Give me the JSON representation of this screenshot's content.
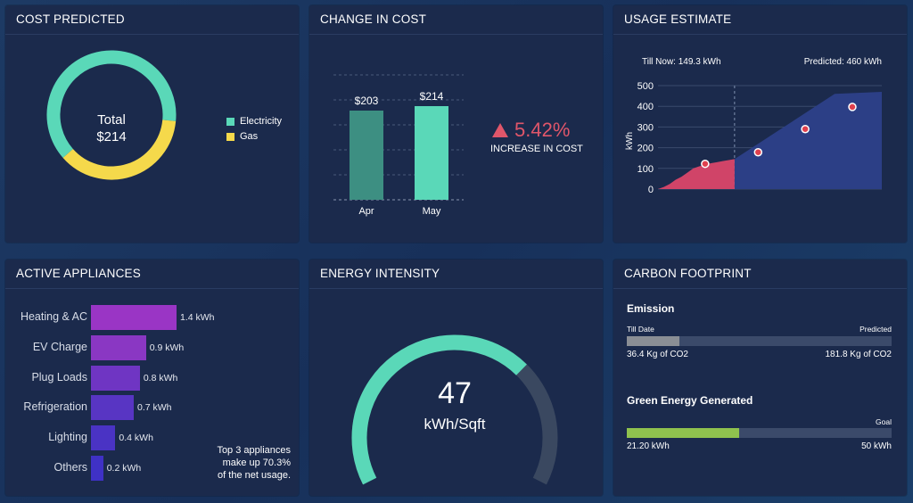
{
  "panels": {
    "cost_predicted": {
      "title": "COST PREDICTED",
      "center_line1": "Total",
      "center_line2": "$214",
      "legend": [
        {
          "label": "Electricity",
          "color": "#5ad8b8"
        },
        {
          "label": "Gas",
          "color": "#f5d94b"
        }
      ],
      "chart_data": {
        "type": "pie",
        "variant": "donut",
        "slices": [
          {
            "label": "Electricity",
            "fraction": 0.63,
            "color": "#5ad8b8"
          },
          {
            "label": "Gas",
            "fraction": 0.37,
            "color": "#f5d94b"
          }
        ]
      }
    },
    "change_in_cost": {
      "title": "CHANGE IN COST",
      "change_value": "5.42%",
      "change_caption": "INCREASE IN COST",
      "up_color": "#e0566a",
      "chart_data": {
        "type": "bar",
        "categories": [
          "Apr",
          "May"
        ],
        "values": [
          203,
          214
        ],
        "data_labels": [
          "$203",
          "$214"
        ],
        "colors": [
          "#3d8f82",
          "#5ad8b8"
        ],
        "ylim": [
          0,
          240
        ]
      }
    },
    "usage_estimate": {
      "title": "USAGE ESTIMATE",
      "till_now_label": "Till Now:",
      "till_now_value": "149.3 kWh",
      "predicted_label": "Predicted:",
      "predicted_value": "460 kWh",
      "chart_data": {
        "type": "area",
        "ylabel": "kWh",
        "ylim": [
          0,
          500
        ],
        "yticks": [
          "0",
          "100",
          "200",
          "300",
          "400",
          "500"
        ],
        "actual": {
          "x": [
            0,
            1,
            2,
            3,
            4,
            5,
            6,
            7,
            8,
            9,
            10,
            11,
            12,
            13
          ],
          "y": [
            0,
            10,
            25,
            45,
            60,
            80,
            100,
            110,
            118,
            125,
            130,
            135,
            140,
            145
          ],
          "color": "#d04468"
        },
        "predicted": {
          "x": [
            13,
            30
          ],
          "y": [
            145,
            460
          ],
          "color": "#2c3f86"
        },
        "markers": {
          "x": [
            8,
            17,
            25,
            33
          ],
          "y": [
            122,
            178,
            290,
            397
          ],
          "color": "#e0404e"
        },
        "xlim": [
          0,
          38
        ],
        "split_x": 13
      }
    },
    "active_appliances": {
      "title": "ACTIVE APPLIANCES",
      "note_line1": "Top 3 appliances",
      "note_line2": "make up 70.3%",
      "note_line3": "of the net usage.",
      "chart_data": {
        "type": "bar",
        "orientation": "horizontal",
        "categories": [
          "Heating & AC",
          "EV Charge",
          "Plug Loads",
          "Refrigeration",
          "Lighting",
          "Others"
        ],
        "values": [
          1.4,
          0.9,
          0.8,
          0.7,
          0.4,
          0.2
        ],
        "data_labels": [
          "1.4 kWh",
          "0.9 kWh",
          "0.8 kWh",
          "0.7 kWh",
          "0.4 kWh",
          "0.2 kWh"
        ],
        "colors": [
          "#9a35c5",
          "#8a37c3",
          "#6f35c3",
          "#5835c3",
          "#4a33c4",
          "#3f31c6"
        ],
        "xmax": 1.4
      }
    },
    "energy_intensity": {
      "title": "ENERGY INTENSITY",
      "value": "47",
      "unit": "kWh/Sqft",
      "gauge_fraction": 0.69,
      "gauge_color": "#5ad8b8",
      "track_color": "#3a4860"
    },
    "carbon_footprint": {
      "title": "CARBON FOOTPRINT",
      "emission": {
        "heading": "Emission",
        "left_label": "Till Date",
        "right_label": "Predicted",
        "left_value": "36.4 Kg of CO2",
        "right_value": "181.8 Kg of CO2",
        "fraction": 0.2,
        "fill_color": "#8a8e95"
      },
      "green": {
        "heading": "Green Energy Generated",
        "right_label": "Goal",
        "left_value": "21.20 kWh",
        "right_value": "50 kWh",
        "fraction": 0.424,
        "fill_color": "#8fc24e"
      }
    }
  }
}
